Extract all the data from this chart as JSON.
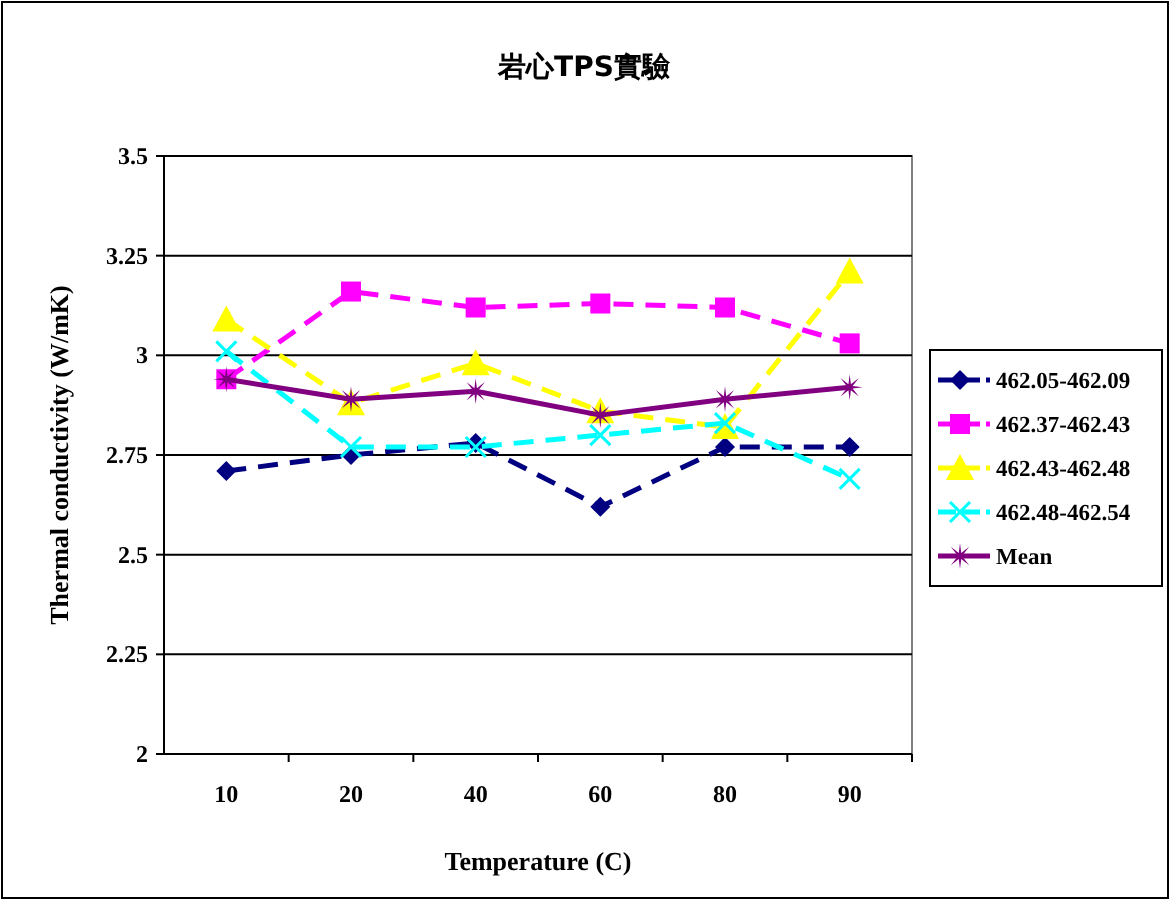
{
  "chart_data": {
    "type": "line",
    "title": "岩心TPS實驗",
    "xlabel": "Temperature (C)",
    "ylabel": "Thermal conductivity (W/mK)",
    "categories": [
      "10",
      "20",
      "40",
      "60",
      "80",
      "90"
    ],
    "series": [
      {
        "name": "462.05-462.09",
        "color": "#000080",
        "marker": "diamond",
        "line_style": "dashed",
        "values": [
          2.71,
          2.75,
          2.78,
          2.62,
          2.77,
          2.77
        ]
      },
      {
        "name": "462.37-462.43",
        "color": "#ff00ff",
        "marker": "square",
        "line_style": "dashed",
        "values": [
          2.94,
          3.16,
          3.12,
          3.13,
          3.12,
          3.03
        ]
      },
      {
        "name": "462.43-462.48",
        "color": "#ffff00",
        "marker": "triangle",
        "line_style": "dashed",
        "values": [
          3.09,
          2.88,
          2.98,
          2.86,
          2.82,
          3.21
        ]
      },
      {
        "name": "462.48-462.54",
        "color": "#00ffff",
        "marker": "cross",
        "line_style": "dashed",
        "values": [
          3.01,
          2.77,
          2.77,
          2.8,
          2.83,
          2.69
        ]
      },
      {
        "name": "Mean",
        "color": "#800080",
        "marker": "star",
        "line_style": "solid",
        "values": [
          2.94,
          2.89,
          2.91,
          2.85,
          2.89,
          2.92
        ]
      }
    ],
    "ylim": [
      2,
      3.5
    ],
    "yticks": [
      2,
      2.25,
      2.5,
      2.75,
      3,
      3.25,
      3.5
    ],
    "grid": "y",
    "legend": "right"
  }
}
